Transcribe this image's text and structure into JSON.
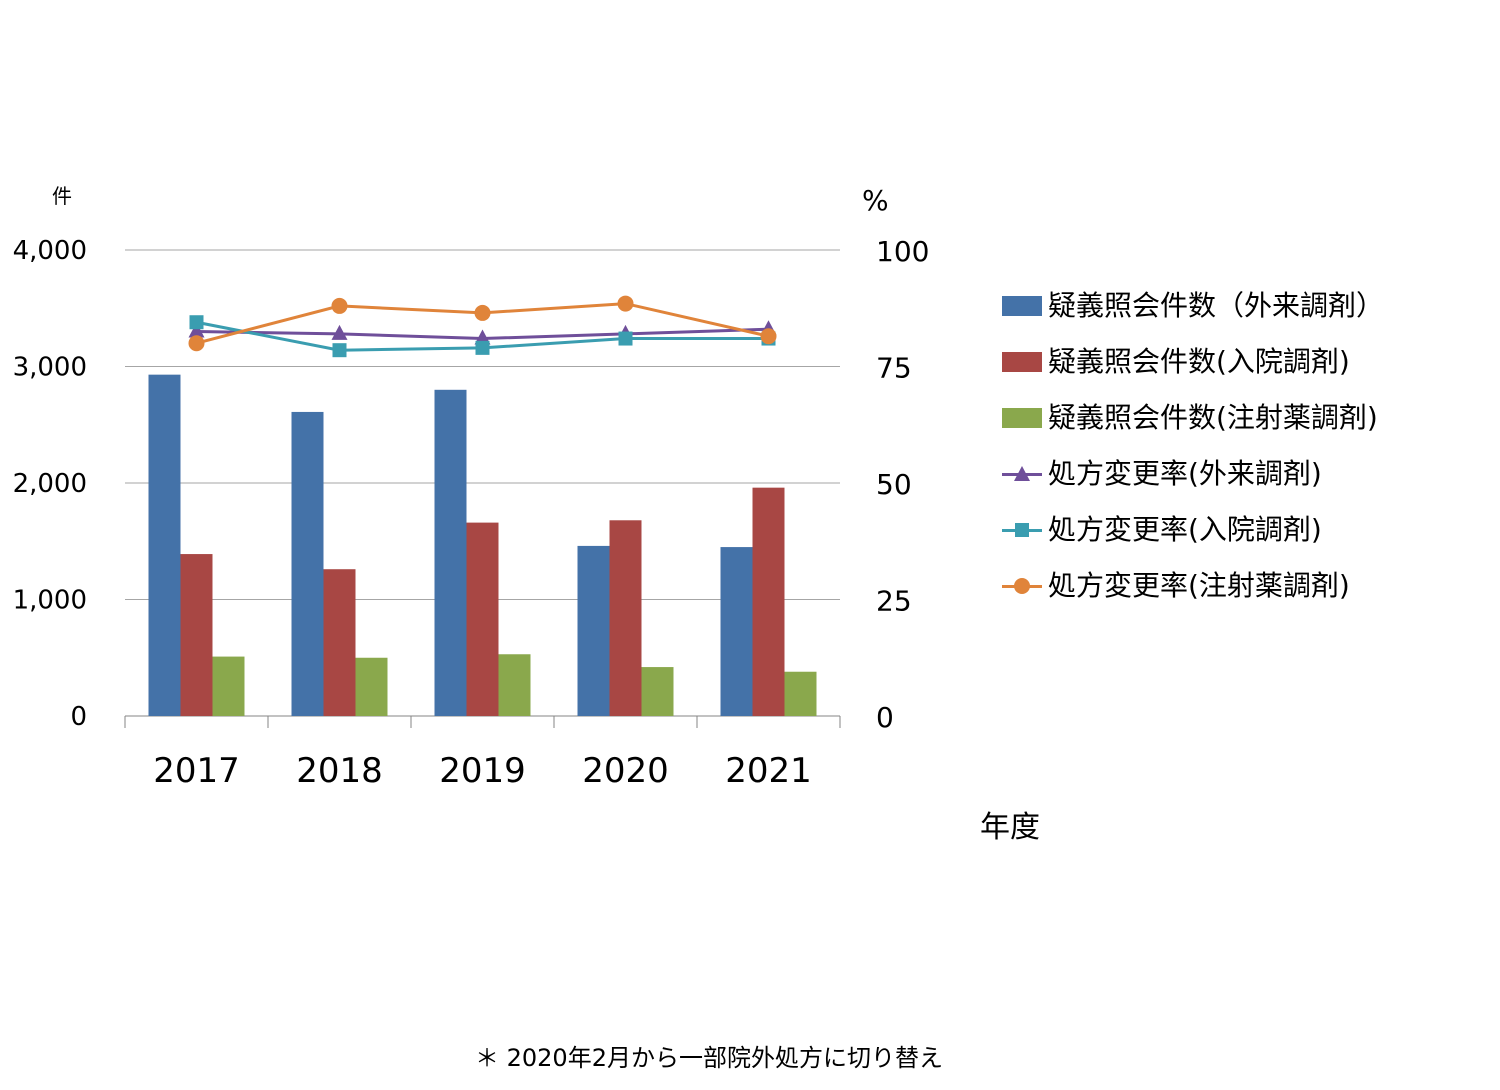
{
  "chart_data": {
    "type": "bar",
    "categories": [
      "2017",
      "2018",
      "2019",
      "2020",
      "2021"
    ],
    "xlabel": "年度",
    "ylabel_left": "件",
    "ylabel_right": "%",
    "ylim_left": [
      0,
      4000
    ],
    "ylim_right": [
      0,
      100
    ],
    "yticks_left": [
      "0",
      "1,000",
      "2,000",
      "3,000",
      "4,000"
    ],
    "yticks_right": [
      "0",
      "25",
      "50",
      "75",
      "100"
    ],
    "grid": true,
    "legend_position": "right",
    "series": [
      {
        "name": "疑義照会件数（外来調剤）",
        "kind": "bar",
        "axis": "left",
        "color": "#4472A8",
        "values": [
          2930,
          2610,
          2800,
          1460,
          1450
        ]
      },
      {
        "name": "疑義照会件数(入院調剤)",
        "kind": "bar",
        "axis": "left",
        "color": "#A84744",
        "values": [
          1390,
          1260,
          1660,
          1680,
          1960
        ]
      },
      {
        "name": "疑義照会件数(注射薬調剤)",
        "kind": "bar",
        "axis": "left",
        "color": "#8AA84C",
        "values": [
          510,
          500,
          530,
          420,
          380
        ]
      },
      {
        "name": "処方変更率(外来調剤)",
        "kind": "line",
        "axis": "right",
        "marker": "triangle",
        "color": "#6F4F9A",
        "values": [
          82.5,
          82,
          81,
          82,
          83
        ]
      },
      {
        "name": "処方変更率(入院調剤)",
        "kind": "line",
        "axis": "right",
        "marker": "square",
        "color": "#3A9DB0",
        "values": [
          84.5,
          78.5,
          79,
          81,
          81
        ]
      },
      {
        "name": "処方変更率(注射薬調剤)",
        "kind": "line",
        "axis": "right",
        "marker": "circle",
        "color": "#E0843A",
        "values": [
          80,
          88,
          86.5,
          88.5,
          81.5
        ]
      }
    ]
  },
  "footnote": "＊ 2020年2月から一部院外処方に切り替え"
}
